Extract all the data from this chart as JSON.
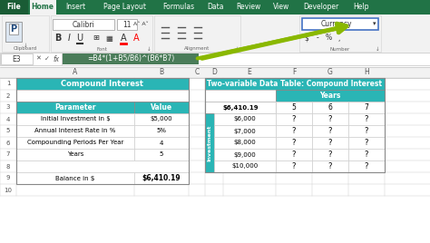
{
  "white": "#ffffff",
  "teal_header": "#2ab5b5",
  "arrow_green": "#8ab800",
  "formula_bar_text": "=B4*(1+B5/B6)^(B6*B7)",
  "cell_ref": "E3",
  "ribbon_tabs": [
    "File",
    "Home",
    "Insert",
    "Page Layout",
    "Formulas",
    "Data",
    "Review",
    "View",
    "Developer",
    "Help"
  ],
  "active_tab": "Home",
  "currency_label": "Currency",
  "col_headers_labels": [
    "A",
    "B",
    "C",
    "D",
    "E",
    "F",
    "G",
    "H"
  ],
  "left_table_title": "Compound Interest",
  "left_params": [
    "Initial Investment in $",
    "Annual Interest Rate in %",
    "Compounding Periods Per Year",
    "Years"
  ],
  "left_values": [
    "$5,000",
    "5%",
    "4",
    "5"
  ],
  "balance_label": "Balance in $",
  "balance_value": "$6,410.19",
  "param_header": "Parameter",
  "value_header": "Value",
  "right_table_title": "Two-variable Data Table: Compound Interest",
  "right_header_corner": "$6,410.19",
  "right_years_header": "Years",
  "right_years_values": [
    "5",
    "6",
    "7"
  ],
  "right_invest_label": "Investment",
  "right_invest_values": [
    "$6,000",
    "$7,000",
    "$8,000",
    "$9,000",
    "$10,000"
  ],
  "grid_line_color": "#c8c8c8",
  "tab_green": "#217346",
  "ribbon_gray": "#f2f2f2",
  "section_border": "#d0d0d0",
  "currency_border": "#4472c4"
}
